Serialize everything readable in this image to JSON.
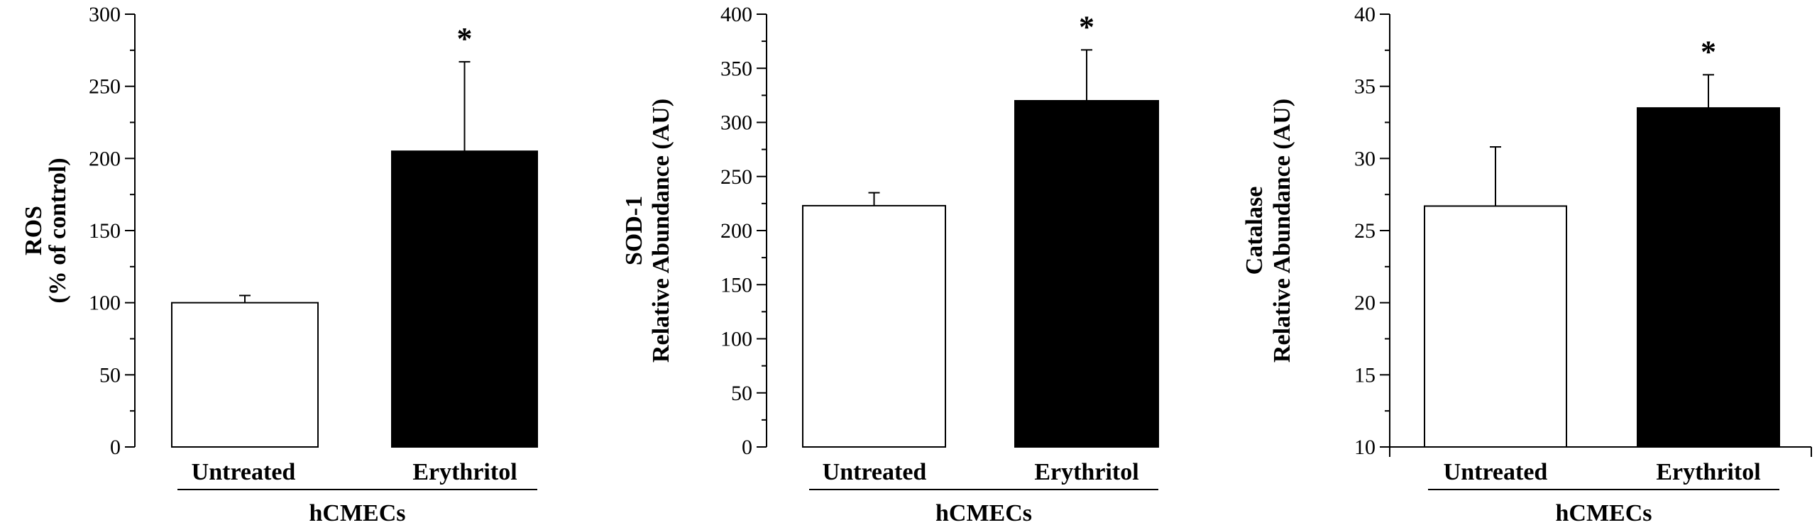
{
  "chart_data": [
    {
      "type": "bar",
      "categories": [
        "Untreated",
        "Erythritol"
      ],
      "values": [
        100,
        205
      ],
      "errors": [
        5,
        62
      ],
      "fills": [
        "#ffffff",
        "#000000"
      ],
      "significance": [
        "",
        "*"
      ],
      "ylabel": [
        "ROS",
        "(% of control)"
      ],
      "group_label": "hCMECs",
      "ylim": [
        0,
        300
      ],
      "major_ticks": [
        0,
        50,
        100,
        150,
        200,
        250,
        300
      ],
      "minor_step": 25,
      "bottom_axis": false
    },
    {
      "type": "bar",
      "categories": [
        "Untreated",
        "Erythritol"
      ],
      "values": [
        223,
        320
      ],
      "errors": [
        12,
        47
      ],
      "fills": [
        "#ffffff",
        "#000000"
      ],
      "significance": [
        "",
        "*"
      ],
      "ylabel": [
        "SOD-1",
        "Relative Abundance (AU)"
      ],
      "group_label": "hCMECs",
      "ylim": [
        0,
        400
      ],
      "major_ticks": [
        0,
        50,
        100,
        150,
        200,
        250,
        300,
        350,
        400
      ],
      "minor_step": 25,
      "bottom_axis": false
    },
    {
      "type": "bar",
      "categories": [
        "Untreated",
        "Erythritol"
      ],
      "values": [
        26.7,
        33.5
      ],
      "errors": [
        4.1,
        2.3
      ],
      "fills": [
        "#ffffff",
        "#000000"
      ],
      "significance": [
        "",
        "*"
      ],
      "ylabel": [
        "Catalase",
        "Relative Abundance (AU)"
      ],
      "group_label": "hCMECs",
      "ylim": [
        10,
        40
      ],
      "major_ticks": [
        10,
        15,
        20,
        25,
        30,
        35,
        40
      ],
      "minor_step": 2.5,
      "bottom_axis": true
    }
  ]
}
